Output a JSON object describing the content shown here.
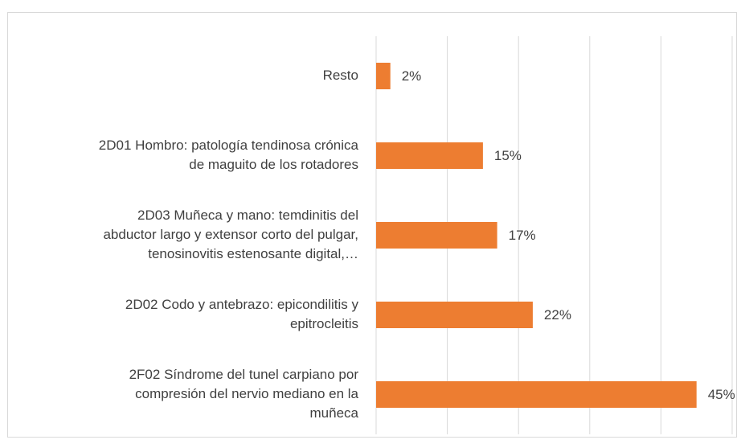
{
  "chart_data": {
    "type": "bar",
    "orientation": "horizontal",
    "categories": [
      [
        "Resto"
      ],
      [
        "2D01 Hombro: patología tendinosa crónica",
        "de maguito de los rotadores"
      ],
      [
        "2D03 Muñeca y mano: temdinitis del",
        "abductor largo y extensor corto del pulgar,",
        "tenosinovitis estenosante digital,…"
      ],
      [
        "2D02 Codo y antebrazo: epicondilitis y",
        "epitrocleitis"
      ],
      [
        "2F02 Síndrome del tunel carpiano por",
        "compresión del nervio mediano en la",
        "muñeca"
      ]
    ],
    "values": [
      2,
      15,
      17,
      22,
      45
    ],
    "value_labels": [
      "2%",
      "15%",
      "17%",
      "22%",
      "45%"
    ],
    "color": "#ed7d31",
    "xlim": [
      0,
      50
    ],
    "xticks": [
      0,
      10,
      20,
      30,
      40,
      50
    ],
    "grid": true
  }
}
